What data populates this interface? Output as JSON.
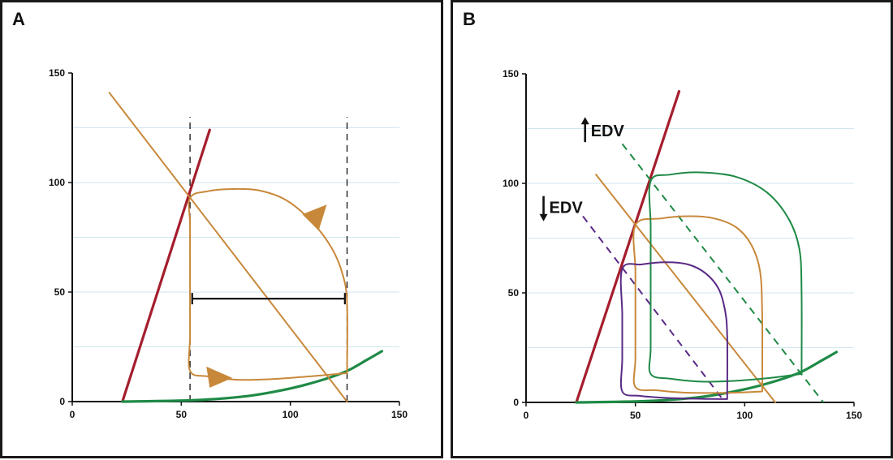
{
  "colors": {
    "red": "#a51e2e",
    "orange": "#c8883a",
    "green": "#1f8a46",
    "purple": "#5a2a86",
    "grid": "#cfe6ee",
    "axis": "#111111"
  },
  "chart_data": [
    {
      "panel_label": "A",
      "type": "line",
      "xlim": [
        0,
        150
      ],
      "ylim": [
        0,
        150
      ],
      "x_ticks": [
        "0",
        "50",
        "100",
        "150"
      ],
      "y_ticks": [
        "0",
        "50",
        "100",
        "150"
      ],
      "grid": "horizontal",
      "series": [
        {
          "key": "espvr",
          "color": "red",
          "style": "solid",
          "points": [
            [
              23,
              0
            ],
            [
              63,
              124
            ]
          ]
        },
        {
          "key": "edpvr",
          "color": "green",
          "style": "solid",
          "points": [
            [
              23,
              0
            ],
            [
              55,
              0.6
            ],
            [
              80,
              2.5
            ],
            [
              100,
              6
            ],
            [
              115,
              10
            ],
            [
              126,
              14
            ],
            [
              135,
              19
            ],
            [
              142,
              23
            ]
          ]
        },
        {
          "key": "ea",
          "color": "orange",
          "style": "solid",
          "points": [
            [
              17,
              141
            ],
            [
              126,
              0
            ]
          ]
        },
        {
          "key": "pv-loop",
          "color": "orange",
          "style": "solid",
          "points": [
            [
              126,
              13
            ],
            [
              126,
              45
            ],
            [
              124,
              58
            ],
            [
              119,
              70
            ],
            [
              110,
              82
            ],
            [
              98,
              92
            ],
            [
              85,
              96.5
            ],
            [
              72,
              97
            ],
            [
              62,
              96
            ],
            [
              54,
              93
            ],
            [
              54,
              80
            ],
            [
              54,
              50
            ],
            [
              54,
              30
            ],
            [
              54,
              14
            ],
            [
              62,
              11.5
            ],
            [
              75,
              10
            ],
            [
              90,
              10.2
            ],
            [
              105,
              11.2
            ],
            [
              126,
              13
            ]
          ]
        }
      ],
      "dashed_verticals": [
        54,
        126
      ],
      "stroke_volume_bar": {
        "x": [
          55,
          125
        ],
        "y": 47
      },
      "arrow_markers": [
        {
          "x": 110,
          "y": 84,
          "heading": "upward along systole"
        },
        {
          "x": 66,
          "y": 11.5,
          "heading": "rightward along filling"
        }
      ]
    },
    {
      "panel_label": "B",
      "type": "line",
      "xlim": [
        0,
        150
      ],
      "ylim": [
        0,
        150
      ],
      "x_ticks": [
        "0",
        "50",
        "100",
        "150"
      ],
      "y_ticks": [
        "0",
        "50",
        "100",
        "150"
      ],
      "grid": "horizontal",
      "series": [
        {
          "key": "espvr",
          "color": "red",
          "style": "solid",
          "points": [
            [
              23,
              0
            ],
            [
              70,
              142
            ]
          ]
        },
        {
          "key": "edpvr",
          "color": "green",
          "style": "solid",
          "points": [
            [
              23,
              0
            ],
            [
              55,
              0.6
            ],
            [
              80,
              2.5
            ],
            [
              100,
              6
            ],
            [
              115,
              10
            ],
            [
              126,
              14
            ],
            [
              135,
              19
            ],
            [
              142,
              23
            ]
          ]
        },
        {
          "key": "ea-baseline",
          "color": "orange",
          "style": "solid",
          "points": [
            [
              32,
              104
            ],
            [
              114,
              0
            ]
          ]
        },
        {
          "key": "ea-increased",
          "color": "green",
          "style": "dashed",
          "points": [
            [
              44,
              118
            ],
            [
              136,
              0
            ]
          ]
        },
        {
          "key": "ea-decreased",
          "color": "purple",
          "style": "dashed",
          "points": [
            [
              26,
              85
            ],
            [
              91,
              0
            ]
          ]
        },
        {
          "key": "loop-baseline",
          "color": "orange",
          "style": "solid",
          "points": [
            [
              108,
              5
            ],
            [
              108,
              40
            ],
            [
              107,
              60
            ],
            [
              103,
              72
            ],
            [
              96,
              80
            ],
            [
              86,
              84
            ],
            [
              75,
              85
            ],
            [
              62,
              84
            ],
            [
              50,
              81
            ],
            [
              50,
              60
            ],
            [
              50,
              40
            ],
            [
              50,
              20
            ],
            [
              50,
              7
            ],
            [
              60,
              5.5
            ],
            [
              72,
              4.5
            ],
            [
              85,
              4.3
            ],
            [
              97,
              4.5
            ],
            [
              108,
              5
            ]
          ]
        },
        {
          "key": "loop-increased",
          "color": "green",
          "style": "solid",
          "points": [
            [
              126,
              13
            ],
            [
              126,
              50
            ],
            [
              125,
              70
            ],
            [
              120,
              84
            ],
            [
              110,
              96
            ],
            [
              96,
              103
            ],
            [
              80,
              105
            ],
            [
              66,
              104
            ],
            [
              57,
              101
            ],
            [
              57,
              80
            ],
            [
              57,
              50
            ],
            [
              57,
              25
            ],
            [
              57,
              13
            ],
            [
              66,
              10.8
            ],
            [
              80,
              9.5
            ],
            [
              95,
              9.8
            ],
            [
              110,
              11
            ],
            [
              126,
              13
            ]
          ]
        },
        {
          "key": "loop-decreased",
          "color": "purple",
          "style": "solid",
          "points": [
            [
              92,
              1.5
            ],
            [
              92,
              30
            ],
            [
              91,
              42
            ],
            [
              88,
              52
            ],
            [
              82,
              59
            ],
            [
              74,
              63
            ],
            [
              64,
              64
            ],
            [
              53,
              63
            ],
            [
              44,
              61
            ],
            [
              44,
              40
            ],
            [
              44,
              20
            ],
            [
              44,
              5
            ],
            [
              52,
              3
            ],
            [
              62,
              2.2
            ],
            [
              72,
              1.8
            ],
            [
              82,
              1.6
            ],
            [
              92,
              1.5
            ]
          ]
        }
      ],
      "annotations": [
        {
          "arrow": "up",
          "text": "EDV",
          "x": 27,
          "y": 124
        },
        {
          "arrow": "down",
          "text": "EDV",
          "x": 8,
          "y": 89
        }
      ]
    }
  ]
}
